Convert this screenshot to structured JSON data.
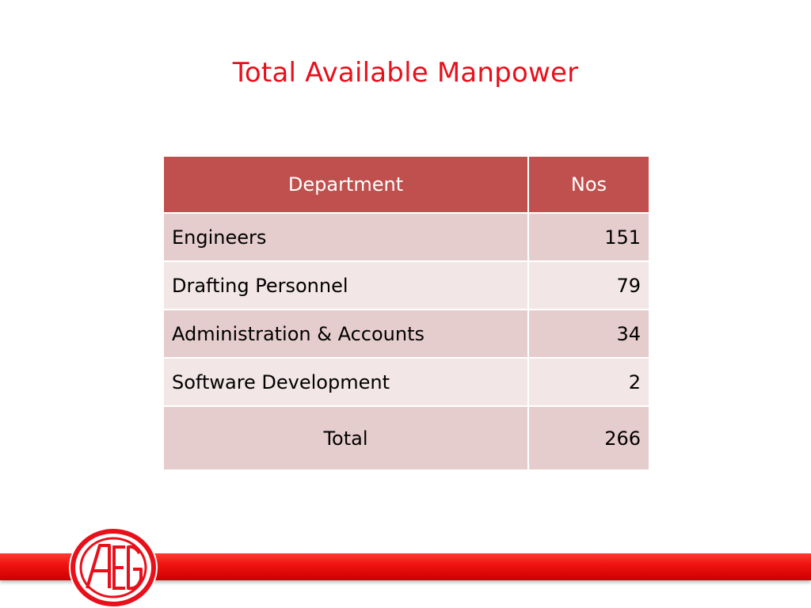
{
  "slide": {
    "title": "Total Available Manpower"
  },
  "table": {
    "headers": {
      "department": "Department",
      "nos": "Nos"
    },
    "rows": [
      {
        "department": "Engineers",
        "nos": "151"
      },
      {
        "department": "Drafting Personnel",
        "nos": "79"
      },
      {
        "department": "Administration & Accounts",
        "nos": "34"
      },
      {
        "department": "Software Development",
        "nos": "2"
      }
    ],
    "total": {
      "label": "Total",
      "nos": "266"
    }
  },
  "logo": {
    "icon": "aeg-logo",
    "text": "AEG"
  },
  "colors": {
    "title": "#e8101a",
    "header_bg": "#c0504d",
    "row_odd": "#e6cdcd",
    "row_even": "#f2e6e6",
    "band": "#f01410"
  }
}
